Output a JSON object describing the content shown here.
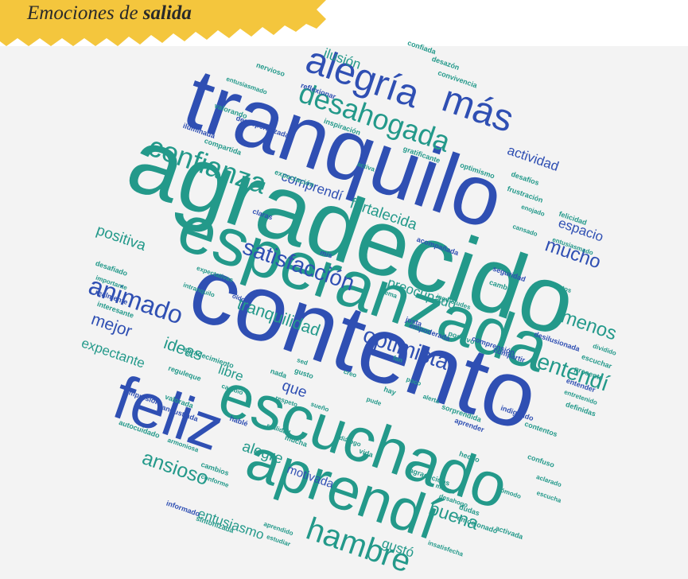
{
  "header": {
    "title": "Emociones de",
    "emphasis": "salida"
  },
  "words": [
    {
      "text": "agradecido",
      "color": "#23998a"
    },
    {
      "text": "tranquilo",
      "color": "#2f4fb3"
    },
    {
      "text": "contento",
      "color": "#2f4fb3"
    },
    {
      "text": "esperanzada",
      "color": "#23998a"
    },
    {
      "text": "escuchado",
      "color": "#23998a"
    },
    {
      "text": "aprendí",
      "color": "#23998a"
    },
    {
      "text": "feliz",
      "color": "#2f4fb3"
    },
    {
      "text": "alegría",
      "color": "#2f4fb3"
    },
    {
      "text": "más",
      "color": "#2f4fb3"
    },
    {
      "text": "desahogada",
      "color": "#23998a"
    },
    {
      "text": "confianza",
      "color": "#23998a"
    },
    {
      "text": "satisfacción",
      "color": "#2f4fb3"
    },
    {
      "text": "animado",
      "color": "#2f4fb3"
    },
    {
      "text": "hambre",
      "color": "#23998a"
    },
    {
      "text": "optimista",
      "color": "#2f4fb3"
    },
    {
      "text": "entendí",
      "color": "#23998a"
    },
    {
      "text": "menos",
      "color": "#23998a"
    },
    {
      "text": "mucho",
      "color": "#2f4fb3"
    },
    {
      "text": "espacio",
      "color": "#2f4fb3"
    },
    {
      "text": "actividad",
      "color": "#2f4fb3"
    },
    {
      "text": "fortalecida",
      "color": "#23998a"
    },
    {
      "text": "comprendí",
      "color": "#2f4fb3"
    },
    {
      "text": "positiva",
      "color": "#23998a"
    },
    {
      "text": "mejor",
      "color": "#2f4fb3"
    },
    {
      "text": "expectante",
      "color": "#23998a"
    },
    {
      "text": "ideas",
      "color": "#23998a"
    },
    {
      "text": "libre",
      "color": "#23998a"
    },
    {
      "text": "que",
      "color": "#2f4fb3"
    },
    {
      "text": "tranquilidad",
      "color": "#23998a"
    },
    {
      "text": "preocupado",
      "color": "#23998a"
    },
    {
      "text": "buena",
      "color": "#23998a"
    },
    {
      "text": "ansioso",
      "color": "#23998a"
    },
    {
      "text": "alegre",
      "color": "#23998a"
    },
    {
      "text": "motivada",
      "color": "#2f4fb3"
    },
    {
      "text": "gustó",
      "color": "#23998a"
    },
    {
      "text": "entusiasmo",
      "color": "#23998a"
    },
    {
      "text": "ilusión",
      "color": "#23998a"
    },
    {
      "text": "confiada",
      "color": "#23998a"
    },
    {
      "text": "desazón",
      "color": "#23998a"
    },
    {
      "text": "convivencia",
      "color": "#23998a"
    },
    {
      "text": "nervioso",
      "color": "#23998a"
    },
    {
      "text": "entusiasmado",
      "color": "#23998a"
    },
    {
      "text": "reflexionar",
      "color": "#2f4fb3"
    },
    {
      "text": "valorando",
      "color": "#23998a"
    },
    {
      "text": "iluminada",
      "color": "#2f4fb3"
    },
    {
      "text": "desesperanzada",
      "color": "#2f4fb3"
    },
    {
      "text": "inspiración",
      "color": "#23998a"
    },
    {
      "text": "compartida",
      "color": "#23998a"
    },
    {
      "text": "gratificante",
      "color": "#23998a"
    },
    {
      "text": "optimismo",
      "color": "#23998a"
    },
    {
      "text": "desafíos",
      "color": "#23998a"
    },
    {
      "text": "frustración",
      "color": "#23998a"
    },
    {
      "text": "activa",
      "color": "#23998a"
    },
    {
      "text": "expectación",
      "color": "#23998a"
    },
    {
      "text": "enojado",
      "color": "#23998a"
    },
    {
      "text": "felicidad",
      "color": "#23998a"
    },
    {
      "text": "cansado",
      "color": "#23998a"
    },
    {
      "text": "entusiasmado",
      "color": "#23998a"
    },
    {
      "text": "claras",
      "color": "#2f4fb3"
    },
    {
      "text": "acompañada",
      "color": "#2f4fb3"
    },
    {
      "text": "seguridad",
      "color": "#2f4fb3"
    },
    {
      "text": "cambié",
      "color": "#23998a"
    },
    {
      "text": "concretos",
      "color": "#23998a"
    },
    {
      "text": "inquietudes",
      "color": "#23998a"
    },
    {
      "text": "expectativas",
      "color": "#23998a"
    },
    {
      "text": "intranquilo",
      "color": "#23998a"
    },
    {
      "text": "mis",
      "color": "#2f4fb3"
    },
    {
      "text": "tema",
      "color": "#23998a"
    },
    {
      "text": "desafiado",
      "color": "#23998a"
    },
    {
      "text": "importante",
      "color": "#23998a"
    },
    {
      "text": "realmente",
      "color": "#2f4fb3"
    },
    {
      "text": "interesante",
      "color": "#23998a"
    },
    {
      "text": "justa",
      "color": "#2f4fb3"
    },
    {
      "text": "empoderada",
      "color": "#2f4fb3"
    },
    {
      "text": "positivo",
      "color": "#23998a"
    },
    {
      "text": "comprensión",
      "color": "#2f4fb3"
    },
    {
      "text": "compartir",
      "color": "#2f4fb3"
    },
    {
      "text": "desilusionada",
      "color": "#2f4fb3"
    },
    {
      "text": "oído",
      "color": "#2f4fb3"
    },
    {
      "text": "fan",
      "color": "#23998a"
    },
    {
      "text": "creo",
      "color": "#23998a"
    },
    {
      "text": "poco",
      "color": "#23998a"
    },
    {
      "text": "hay",
      "color": "#23998a"
    },
    {
      "text": "alerta",
      "color": "#23998a"
    },
    {
      "text": "pude",
      "color": "#23998a"
    },
    {
      "text": "sed",
      "color": "#23998a"
    },
    {
      "text": "gusto",
      "color": "#23998a"
    },
    {
      "text": "nada",
      "color": "#23998a"
    },
    {
      "text": "agradecimiento",
      "color": "#23998a"
    },
    {
      "text": "reguleque",
      "color": "#23998a"
    },
    {
      "text": "cambio",
      "color": "#23998a"
    },
    {
      "text": "impresión",
      "color": "#2f4fb3"
    },
    {
      "text": "valorada",
      "color": "#23998a"
    },
    {
      "text": "angustiada",
      "color": "#2f4fb3"
    },
    {
      "text": "autocuidado",
      "color": "#23998a"
    },
    {
      "text": "respeto",
      "color": "#23998a"
    },
    {
      "text": "sueño",
      "color": "#23998a"
    },
    {
      "text": "hablé",
      "color": "#2f4fb3"
    },
    {
      "text": "realidad",
      "color": "#23998a"
    },
    {
      "text": "mucha",
      "color": "#23998a"
    },
    {
      "text": "diálogo",
      "color": "#23998a"
    },
    {
      "text": "vida",
      "color": "#23998a"
    },
    {
      "text": "sorprendida",
      "color": "#23998a"
    },
    {
      "text": "aprender",
      "color": "#2f4fb3"
    },
    {
      "text": "indignado",
      "color": "#2f4fb3"
    },
    {
      "text": "presente",
      "color": "#23998a"
    },
    {
      "text": "escuchar",
      "color": "#23998a"
    },
    {
      "text": "dividido",
      "color": "#23998a"
    },
    {
      "text": "entender",
      "color": "#2f4fb3"
    },
    {
      "text": "entretenido",
      "color": "#23998a"
    },
    {
      "text": "definidas",
      "color": "#23998a"
    },
    {
      "text": "contentos",
      "color": "#23998a"
    },
    {
      "text": "hecho",
      "color": "#23998a"
    },
    {
      "text": "agradecidos",
      "color": "#23998a"
    },
    {
      "text": "mismo",
      "color": "#23998a"
    },
    {
      "text": "desahogo",
      "color": "#23998a"
    },
    {
      "text": "dudas",
      "color": "#23998a"
    },
    {
      "text": "confuso",
      "color": "#23998a"
    },
    {
      "text": "cómodo",
      "color": "#23998a"
    },
    {
      "text": "aclarado",
      "color": "#23998a"
    },
    {
      "text": "escucha",
      "color": "#23998a"
    },
    {
      "text": "armoniosa",
      "color": "#23998a"
    },
    {
      "text": "cambios",
      "color": "#23998a"
    },
    {
      "text": "conforme",
      "color": "#23998a"
    },
    {
      "text": "informado",
      "color": "#2f4fb3"
    },
    {
      "text": "sintonizada",
      "color": "#23998a"
    },
    {
      "text": "aprendido",
      "color": "#23998a"
    },
    {
      "text": "estudiar",
      "color": "#23998a"
    },
    {
      "text": "emocionado",
      "color": "#23998a"
    },
    {
      "text": "activada",
      "color": "#23998a"
    },
    {
      "text": "insatisfecha",
      "color": "#23998a"
    }
  ]
}
